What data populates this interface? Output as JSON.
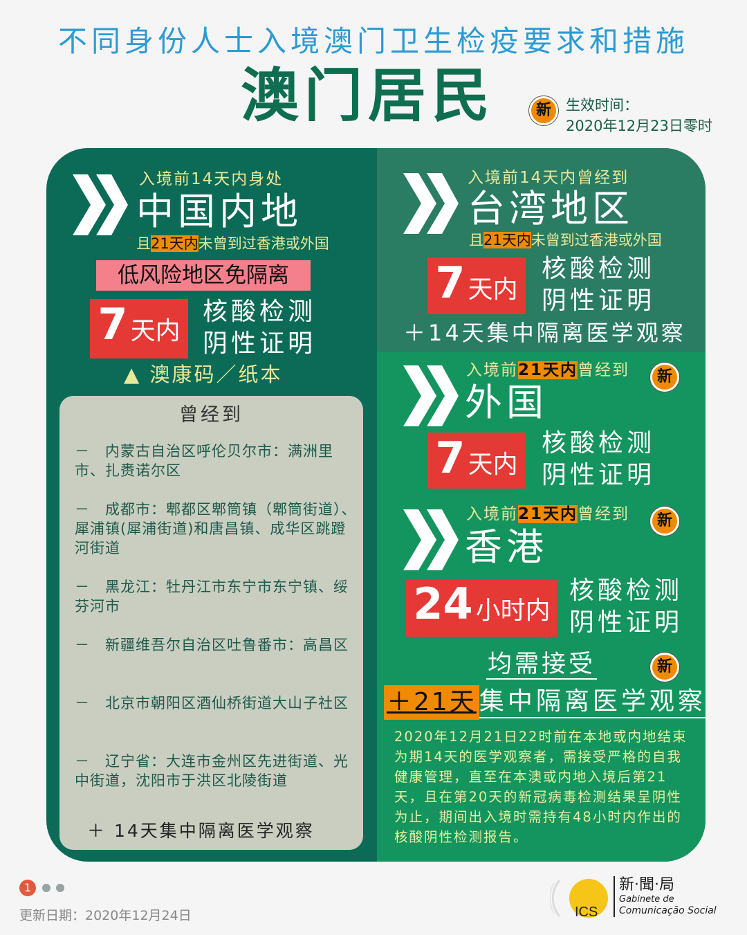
{
  "header": {
    "subtitle": "不同身份人士入境澳门卫生检疫要求和措施",
    "title": "澳门居民",
    "new_badge": "新",
    "effective_label": "生效时间：",
    "effective_date": "2020年12月23日零时"
  },
  "colors": {
    "left": "#0b6b57",
    "right_top": "#2a7c63",
    "right_bottom": "#14945e",
    "red": "#e53935",
    "orange": "#f08a00",
    "pink": "#f4808c",
    "title_blue": "#2c9bd3"
  },
  "mainland": {
    "pre": "入境前14天内身处",
    "place": "中国内地",
    "cond_a": "且",
    "cond_hl": "21天内",
    "cond_b": "未曾到过香港或外国",
    "banner": "低风险地区免隔离",
    "days_num": "7",
    "days_unit": "天内",
    "test_1": "核酸检测",
    "test_2": "阴性证明",
    "code": "▲ 澳康码／纸本",
    "visited": {
      "title": "曾经到",
      "items": [
        "－　内蒙古自治区呼伦贝尔市：满洲里市、扎赉诺尔区",
        "－　成都市：郫都区郫筒镇（郫筒街道）、犀浦镇(犀浦街道)和唐昌镇、成华区跳蹬河街道",
        "－　黑龙江：牡丹江市东宁市东宁镇、绥芬河市",
        "－　新疆维吾尔自治区吐鲁番市：高昌区",
        "－　北京市朝阳区酒仙桥街道大山子社区",
        "－　辽宁省：大连市金州区先进街道、光中街道，沈阳市于洪区北陵街道"
      ],
      "footer": "＋ 14天集中隔离医学观察"
    }
  },
  "taiwan": {
    "pre": "入境前14天内曾经到",
    "place": "台湾地区",
    "cond_a": "且",
    "cond_hl": "21天内",
    "cond_b": "未曾到过香港或外国",
    "days_num": "7",
    "days_unit": "天内",
    "test_1": "核酸检测",
    "test_2": "阴性证明",
    "quarantine": "＋14天集中隔离医学观察"
  },
  "foreign": {
    "pre_a": "入境前",
    "pre_hl": "21天内",
    "pre_b": "曾经到",
    "place": "外国",
    "days_num": "7",
    "days_unit": "天内",
    "test_1": "核酸检测",
    "test_2": "阴性证明",
    "new_badge": "新"
  },
  "hongkong": {
    "pre_a": "入境前",
    "pre_hl": "21天内",
    "pre_b": "曾经到",
    "place": "香港",
    "days_num": "24",
    "days_unit": "小时内",
    "test_1": "核酸检测",
    "test_2": "阴性证明",
    "new_badge": "新"
  },
  "common": {
    "must": "均需接受",
    "new_badge": "新",
    "q_hl": "＋21天",
    "q_rest": "集中隔离医学观察",
    "note": "2020年12月21日22时前在本地或内地结束为期14天的医学观察者，需接受严格的自我健康管理，直至在本澳或内地入境后第21天，且在第20天的新冠病毒检测结果呈阴性为止，期间出入境时需持有48小时内作出的核酸阴性检测报告。"
  },
  "footer": {
    "page": "1",
    "updated": "更新日期：2020年12月24日",
    "logo_cn": "新·聞·局",
    "logo_pt1": "Gabinete de",
    "logo_pt2": "Comunicação Social",
    "logo_mark": "GCS"
  }
}
